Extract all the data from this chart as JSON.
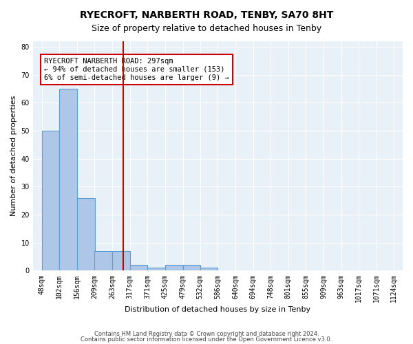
{
  "title1": "RYECROFT, NARBERTH ROAD, TENBY, SA70 8HT",
  "title2": "Size of property relative to detached houses in Tenby",
  "xlabel": "Distribution of detached houses by size in Tenby",
  "ylabel": "Number of detached properties",
  "bar_values": [
    50,
    65,
    26,
    7,
    7,
    2,
    1,
    2,
    2,
    1,
    0,
    0,
    0,
    0,
    0,
    0,
    0,
    0,
    0,
    0
  ],
  "bin_labels": [
    "48sqm",
    "102sqm",
    "156sqm",
    "209sqm",
    "263sqm",
    "317sqm",
    "371sqm",
    "425sqm",
    "479sqm",
    "532sqm",
    "586sqm",
    "640sqm",
    "694sqm",
    "748sqm",
    "801sqm",
    "855sqm",
    "909sqm",
    "963sqm",
    "1017sqm",
    "1071sqm",
    "1124sqm"
  ],
  "bin_edges": [
    48,
    102,
    156,
    209,
    263,
    317,
    371,
    425,
    479,
    532,
    586,
    640,
    694,
    748,
    801,
    855,
    909,
    963,
    1017,
    1071,
    1124
  ],
  "bar_color": "#aec6e8",
  "bar_edge_color": "#5a9fd4",
  "red_line_x": 297,
  "red_line_color": "#cc0000",
  "annotation_text": "RYECROFT NARBERTH ROAD: 297sqm\n← 94% of detached houses are smaller (153)\n6% of semi-detached houses are larger (9) →",
  "annotation_box_color": "#ffffff",
  "annotation_box_edge": "#cc0000",
  "ylim": [
    0,
    82
  ],
  "footer1": "Contains HM Land Registry data © Crown copyright and database right 2024.",
  "footer2": "Contains public sector information licensed under the Open Government Licence v3.0.",
  "plot_bg_color": "#e8f0f8"
}
